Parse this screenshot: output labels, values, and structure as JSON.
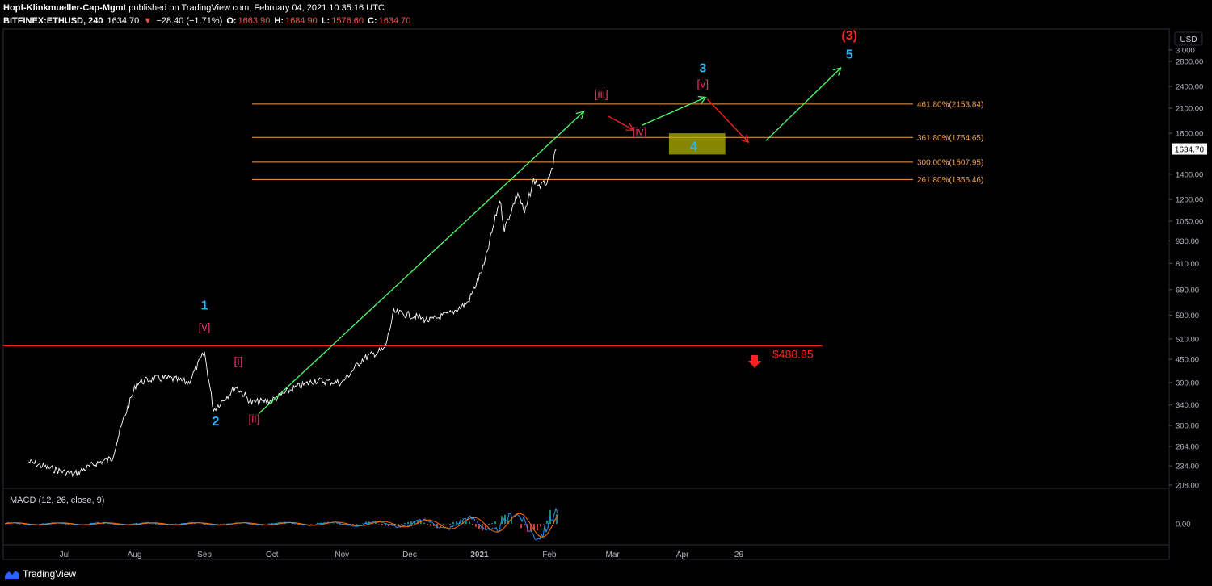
{
  "header": {
    "author": "Hopf-Klinkmueller-Cap-Mgmt",
    "published": "published on TradingView.com, February 04, 2021 10:35:16 UTC",
    "symbol": "BITFINEX:ETHUSD, 240",
    "last": "1634.70",
    "change_arrow": "▼",
    "change": "−28.40 (−1.71%)",
    "o_label": "O:",
    "o": "1663.90",
    "h_label": "H:",
    "h": "1684.90",
    "l_label": "L:",
    "l": "1576.60",
    "c_label": "C:",
    "c": "1634.70"
  },
  "footer": {
    "brand": "TradingView"
  },
  "colors": {
    "price": "#ffffff",
    "fib": "#f5a04a",
    "support": "#ff2020",
    "arrow_green": "#4cff6a",
    "arrow_red": "#ff2020",
    "wave_cyan": "#29b6f6",
    "wave_pink": "#e8336b",
    "zone": "#b3b300"
  },
  "chart_data": [
    {
      "type": "line",
      "title": "",
      "yscale": "log",
      "currency_label": "USD",
      "x_ticks": [
        "Jul",
        "Aug",
        "Sep",
        "Oct",
        "Nov",
        "Dec",
        "2021",
        "Feb",
        "Mar",
        "Apr",
        "26"
      ],
      "y_ticks": [
        "3 000",
        "2800.00",
        "2400.00",
        "2100.00",
        "1800.00",
        "1634.70",
        "1400.00",
        "1200.00",
        "1050.00",
        "930.00",
        "810.00",
        "690.00",
        "590.00",
        "510.00",
        "450.00",
        "390.00",
        "340.00",
        "300.00",
        "264.00",
        "234.00",
        "208.00"
      ],
      "last_price_label": "1634.70",
      "series": [
        {
          "x": [
            "2020-06-15",
            "2020-06-25",
            "2020-07-05",
            "2020-07-15",
            "2020-07-22",
            "2020-07-27",
            "2020-08-02",
            "2020-08-10",
            "2020-08-17",
            "2020-08-25",
            "2020-09-01",
            "2020-09-05",
            "2020-09-15",
            "2020-09-22",
            "2020-10-01",
            "2020-10-10",
            "2020-10-20",
            "2020-11-01",
            "2020-11-10",
            "2020-11-20",
            "2020-11-24",
            "2020-12-01",
            "2020-12-10",
            "2020-12-20",
            "2020-12-27",
            "2021-01-03",
            "2021-01-10",
            "2021-01-12",
            "2021-01-18",
            "2021-01-21",
            "2021-01-25",
            "2021-01-28",
            "2021-02-01",
            "2021-02-04"
          ],
          "values": [
            240,
            230,
            222,
            238,
            245,
            310,
            390,
            400,
            400,
            390,
            470,
            330,
            380,
            345,
            350,
            375,
            395,
            390,
            450,
            480,
            600,
            590,
            570,
            600,
            640,
            800,
            1200,
            1000,
            1250,
            1100,
            1350,
            1300,
            1350,
            1634.7
          ]
        }
      ],
      "fib_levels": [
        {
          "label": "461.80%(2153.84)",
          "value": 2153.84
        },
        {
          "label": "361.80%(1754.65)",
          "value": 1754.65
        },
        {
          "label": "300.00%(1507.95)",
          "value": 1507.95
        },
        {
          "label": "261.80%(1355.46)",
          "value": 1355.46
        }
      ],
      "support": {
        "label": "$488.85",
        "value": 488.85
      },
      "target_zone": {
        "from": "2021-03-26",
        "to": "2021-04-20",
        "low": 1580,
        "high": 1800
      },
      "waves": [
        {
          "label": "1",
          "x": "2020-09-01",
          "y": 610,
          "color": "cyan"
        },
        {
          "label": "[v]",
          "x": "2020-09-01",
          "y": 535,
          "color": "pink"
        },
        {
          "label": "2",
          "x": "2020-09-06",
          "y": 300,
          "color": "cyan"
        },
        {
          "label": "[i]",
          "x": "2020-09-16",
          "y": 435,
          "color": "pink"
        },
        {
          "label": "[ii]",
          "x": "2020-09-23",
          "y": 305,
          "color": "pink"
        },
        {
          "label": "[iii]",
          "x": "2021-02-24",
          "y": 2240,
          "color": "pink"
        },
        {
          "label": "[iv]",
          "x": "2021-03-13",
          "y": 1780,
          "color": "pink"
        },
        {
          "label": "3",
          "x": "2021-04-10",
          "y": 2620,
          "color": "cyan"
        },
        {
          "label": "[v]",
          "x": "2021-04-10",
          "y": 2380,
          "color": "pink"
        },
        {
          "label": "4",
          "x": "2021-04-06",
          "y": 1620,
          "color": "cyan"
        },
        {
          "label": "(3)",
          "x": "2021-06-14",
          "y": 3200,
          "color": "red"
        },
        {
          "label": "5",
          "x": "2021-06-14",
          "y": 2850,
          "color": "cyan"
        }
      ],
      "arrows": [
        {
          "from": [
            "2020-09-25",
            322
          ],
          "to": [
            "2021-02-16",
            2050
          ],
          "color": "green"
        },
        {
          "from": [
            "2021-02-27",
            2000
          ],
          "to": [
            "2021-03-10",
            1840
          ],
          "color": "red"
        },
        {
          "from": [
            "2021-03-14",
            1890
          ],
          "to": [
            "2021-04-11",
            2240
          ],
          "color": "green"
        },
        {
          "from": [
            "2021-04-12",
            2220
          ],
          "to": [
            "2021-04-30",
            1710
          ],
          "color": "red"
        },
        {
          "from": [
            "2021-05-08",
            1720
          ],
          "to": [
            "2021-06-10",
            2680
          ],
          "color": "green"
        }
      ]
    },
    {
      "type": "bar",
      "title": "MACD (12, 26, close, 9)",
      "y_ticks": [
        "0.00"
      ]
    }
  ]
}
